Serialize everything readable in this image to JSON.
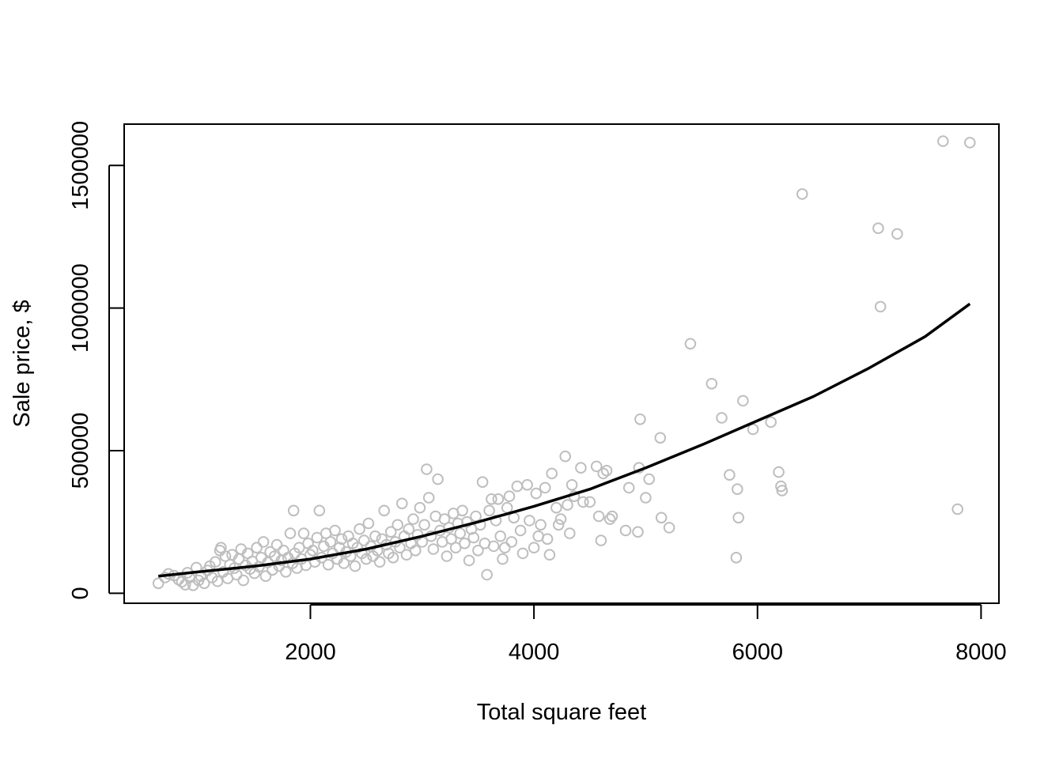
{
  "chart_data": {
    "type": "scatter",
    "xlabel": "Total square feet",
    "ylabel": "Sale price, $",
    "xlim": [
      334,
      8160
    ],
    "ylim": [
      -35000,
      1645000
    ],
    "x_ticks": [
      {
        "value": 2000,
        "label": "2000"
      },
      {
        "value": 4000,
        "label": "4000"
      },
      {
        "value": 6000,
        "label": "6000"
      },
      {
        "value": 8000,
        "label": "8000"
      }
    ],
    "y_ticks": [
      {
        "value": 0,
        "label": "0"
      },
      {
        "value": 500000,
        "label": "500000"
      },
      {
        "value": 1000000,
        "label": "1000000"
      },
      {
        "value": 1500000,
        "label": "1500000"
      }
    ],
    "point_color": "#BEBEBE",
    "line_color": "#000000",
    "points": [
      [
        640,
        35000
      ],
      [
        700,
        55000
      ],
      [
        730,
        68000
      ],
      [
        780,
        62000
      ],
      [
        820,
        48000
      ],
      [
        850,
        40000
      ],
      [
        880,
        30000
      ],
      [
        900,
        72000
      ],
      [
        920,
        55000
      ],
      [
        950,
        28000
      ],
      [
        980,
        90000
      ],
      [
        1000,
        45000
      ],
      [
        1020,
        60000
      ],
      [
        1050,
        35000
      ],
      [
        1080,
        80000
      ],
      [
        1100,
        95000
      ],
      [
        1120,
        55000
      ],
      [
        1150,
        110000
      ],
      [
        1170,
        42000
      ],
      [
        1190,
        150000
      ],
      [
        1200,
        160000
      ],
      [
        1220,
        75000
      ],
      [
        1240,
        130000
      ],
      [
        1260,
        52000
      ],
      [
        1280,
        100000
      ],
      [
        1300,
        135000
      ],
      [
        1320,
        88000
      ],
      [
        1340,
        65000
      ],
      [
        1360,
        120000
      ],
      [
        1380,
        155000
      ],
      [
        1400,
        45000
      ],
      [
        1420,
        98000
      ],
      [
        1440,
        140000
      ],
      [
        1460,
        85000
      ],
      [
        1480,
        112000
      ],
      [
        1500,
        70000
      ],
      [
        1520,
        160000
      ],
      [
        1540,
        93000
      ],
      [
        1560,
        125000
      ],
      [
        1580,
        180000
      ],
      [
        1600,
        60000
      ],
      [
        1620,
        108000
      ],
      [
        1640,
        145000
      ],
      [
        1660,
        82000
      ],
      [
        1680,
        130000
      ],
      [
        1700,
        170000
      ],
      [
        1720,
        95000
      ],
      [
        1740,
        115000
      ],
      [
        1760,
        150000
      ],
      [
        1780,
        75000
      ],
      [
        1800,
        125000
      ],
      [
        1820,
        210000
      ],
      [
        1840,
        105000
      ],
      [
        1850,
        290000
      ],
      [
        1860,
        140000
      ],
      [
        1880,
        88000
      ],
      [
        1900,
        160000
      ],
      [
        1920,
        120000
      ],
      [
        1940,
        210000
      ],
      [
        1960,
        98000
      ],
      [
        1980,
        175000
      ],
      [
        2000,
        135000
      ],
      [
        2020,
        150000
      ],
      [
        2040,
        110000
      ],
      [
        2060,
        195000
      ],
      [
        2080,
        290000
      ],
      [
        2100,
        125000
      ],
      [
        2120,
        165000
      ],
      [
        2140,
        210000
      ],
      [
        2160,
        100000
      ],
      [
        2180,
        180000
      ],
      [
        2200,
        140000
      ],
      [
        2220,
        220000
      ],
      [
        2240,
        120000
      ],
      [
        2260,
        160000
      ],
      [
        2280,
        190000
      ],
      [
        2300,
        105000
      ],
      [
        2320,
        145000
      ],
      [
        2340,
        200000
      ],
      [
        2360,
        130000
      ],
      [
        2380,
        175000
      ],
      [
        2400,
        95000
      ],
      [
        2420,
        160000
      ],
      [
        2440,
        225000
      ],
      [
        2460,
        140000
      ],
      [
        2480,
        185000
      ],
      [
        2500,
        120000
      ],
      [
        2520,
        245000
      ],
      [
        2540,
        165000
      ],
      [
        2560,
        130000
      ],
      [
        2580,
        200000
      ],
      [
        2600,
        150000
      ],
      [
        2620,
        110000
      ],
      [
        2640,
        190000
      ],
      [
        2660,
        290000
      ],
      [
        2680,
        170000
      ],
      [
        2700,
        140000
      ],
      [
        2720,
        215000
      ],
      [
        2740,
        125000
      ],
      [
        2760,
        180000
      ],
      [
        2780,
        240000
      ],
      [
        2800,
        160000
      ],
      [
        2820,
        315000
      ],
      [
        2840,
        200000
      ],
      [
        2860,
        135000
      ],
      [
        2880,
        225000
      ],
      [
        2900,
        175000
      ],
      [
        2920,
        260000
      ],
      [
        2940,
        150000
      ],
      [
        2960,
        205000
      ],
      [
        2980,
        300000
      ],
      [
        3000,
        180000
      ],
      [
        3020,
        240000
      ],
      [
        3040,
        435000
      ],
      [
        3060,
        335000
      ],
      [
        3080,
        200000
      ],
      [
        3100,
        155000
      ],
      [
        3120,
        270000
      ],
      [
        3140,
        400000
      ],
      [
        3160,
        220000
      ],
      [
        3180,
        180000
      ],
      [
        3200,
        260000
      ],
      [
        3220,
        130000
      ],
      [
        3240,
        230000
      ],
      [
        3260,
        190000
      ],
      [
        3280,
        280000
      ],
      [
        3300,
        160000
      ],
      [
        3320,
        245000
      ],
      [
        3340,
        210000
      ],
      [
        3360,
        290000
      ],
      [
        3380,
        175000
      ],
      [
        3400,
        250000
      ],
      [
        3420,
        115000
      ],
      [
        3440,
        225000
      ],
      [
        3460,
        195000
      ],
      [
        3480,
        270000
      ],
      [
        3500,
        150000
      ],
      [
        3520,
        240000
      ],
      [
        3540,
        390000
      ],
      [
        3560,
        175000
      ],
      [
        3580,
        65000
      ],
      [
        3600,
        290000
      ],
      [
        3620,
        330000
      ],
      [
        3640,
        165000
      ],
      [
        3660,
        255000
      ],
      [
        3680,
        330000
      ],
      [
        3700,
        200000
      ],
      [
        3720,
        120000
      ],
      [
        3740,
        160000
      ],
      [
        3760,
        300000
      ],
      [
        3780,
        340000
      ],
      [
        3800,
        180000
      ],
      [
        3820,
        265000
      ],
      [
        3850,
        375000
      ],
      [
        3880,
        220000
      ],
      [
        3900,
        140000
      ],
      [
        3940,
        380000
      ],
      [
        3960,
        255000
      ],
      [
        4000,
        160000
      ],
      [
        4020,
        350000
      ],
      [
        4040,
        200000
      ],
      [
        4060,
        240000
      ],
      [
        4100,
        370000
      ],
      [
        4120,
        190000
      ],
      [
        4140,
        135000
      ],
      [
        4160,
        420000
      ],
      [
        4200,
        300000
      ],
      [
        4220,
        240000
      ],
      [
        4240,
        260000
      ],
      [
        4280,
        480000
      ],
      [
        4300,
        310000
      ],
      [
        4320,
        210000
      ],
      [
        4340,
        380000
      ],
      [
        4360,
        340000
      ],
      [
        4420,
        440000
      ],
      [
        4440,
        320000
      ],
      [
        4500,
        320000
      ],
      [
        4560,
        445000
      ],
      [
        4580,
        270000
      ],
      [
        4600,
        185000
      ],
      [
        4620,
        420000
      ],
      [
        4650,
        430000
      ],
      [
        4680,
        260000
      ],
      [
        4700,
        270000
      ],
      [
        4820,
        220000
      ],
      [
        4850,
        370000
      ],
      [
        4930,
        215000
      ],
      [
        4940,
        440000
      ],
      [
        4950,
        610000
      ],
      [
        5000,
        335000
      ],
      [
        5030,
        400000
      ],
      [
        5130,
        545000
      ],
      [
        5140,
        265000
      ],
      [
        5210,
        230000
      ],
      [
        5400,
        875000
      ],
      [
        5590,
        735000
      ],
      [
        5680,
        615000
      ],
      [
        5750,
        415000
      ],
      [
        5810,
        125000
      ],
      [
        5820,
        365000
      ],
      [
        5830,
        265000
      ],
      [
        5870,
        675000
      ],
      [
        5960,
        575000
      ],
      [
        6120,
        600000
      ],
      [
        6190,
        425000
      ],
      [
        6210,
        375000
      ],
      [
        6220,
        360000
      ],
      [
        6400,
        1400000
      ],
      [
        7080,
        1280000
      ],
      [
        7100,
        1005000
      ],
      [
        7250,
        1260000
      ],
      [
        7660,
        1585000
      ],
      [
        7790,
        295000
      ],
      [
        7900,
        1580000
      ]
    ],
    "fit_line": [
      [
        640,
        60000
      ],
      [
        1000,
        75000
      ],
      [
        1500,
        95000
      ],
      [
        2000,
        120000
      ],
      [
        2500,
        155000
      ],
      [
        3000,
        200000
      ],
      [
        3500,
        250000
      ],
      [
        4000,
        305000
      ],
      [
        4500,
        365000
      ],
      [
        5000,
        440000
      ],
      [
        5500,
        520000
      ],
      [
        6000,
        605000
      ],
      [
        6500,
        690000
      ],
      [
        7000,
        790000
      ],
      [
        7500,
        900000
      ],
      [
        7900,
        1015000
      ]
    ]
  }
}
